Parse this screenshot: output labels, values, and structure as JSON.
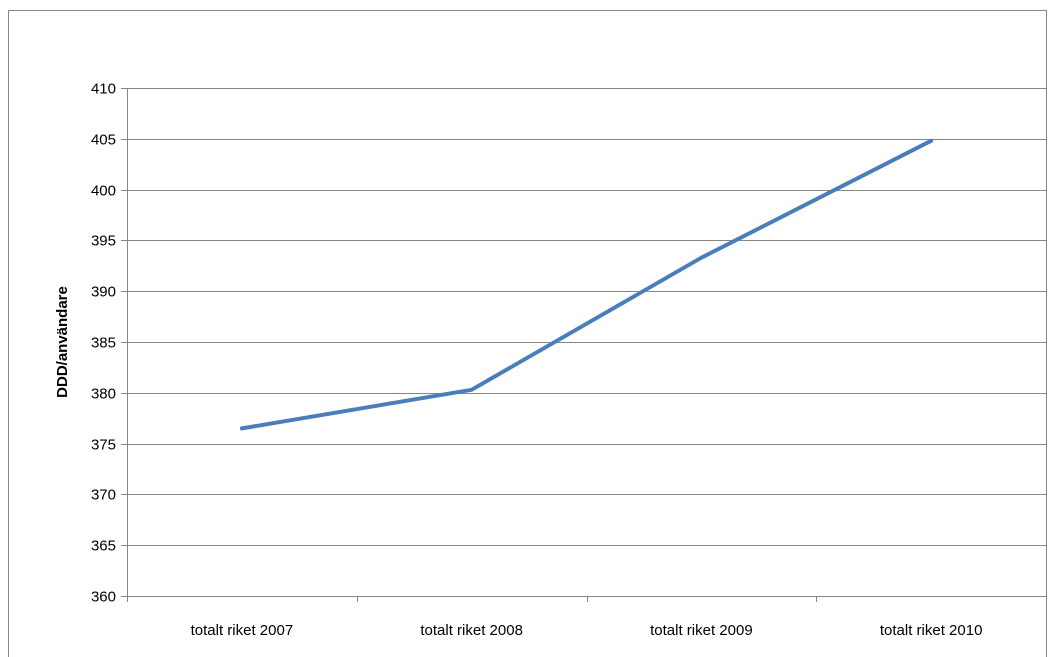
{
  "chart_data": {
    "type": "line",
    "title": "",
    "xlabel": "",
    "ylabel": "DDD/användare",
    "categories": [
      "totalt riket 2007",
      "totalt riket 2008",
      "totalt riket 2009",
      "totalt riket 2010"
    ],
    "series": [
      {
        "values": [
          376.5,
          380.3,
          393.3,
          404.8
        ],
        "color": "#4a7ebb"
      }
    ],
    "ylim": [
      360,
      410
    ],
    "yticks": [
      360,
      365,
      370,
      375,
      380,
      385,
      390,
      395,
      400,
      405,
      410
    ],
    "grid": "horizontal",
    "legend": "none"
  }
}
